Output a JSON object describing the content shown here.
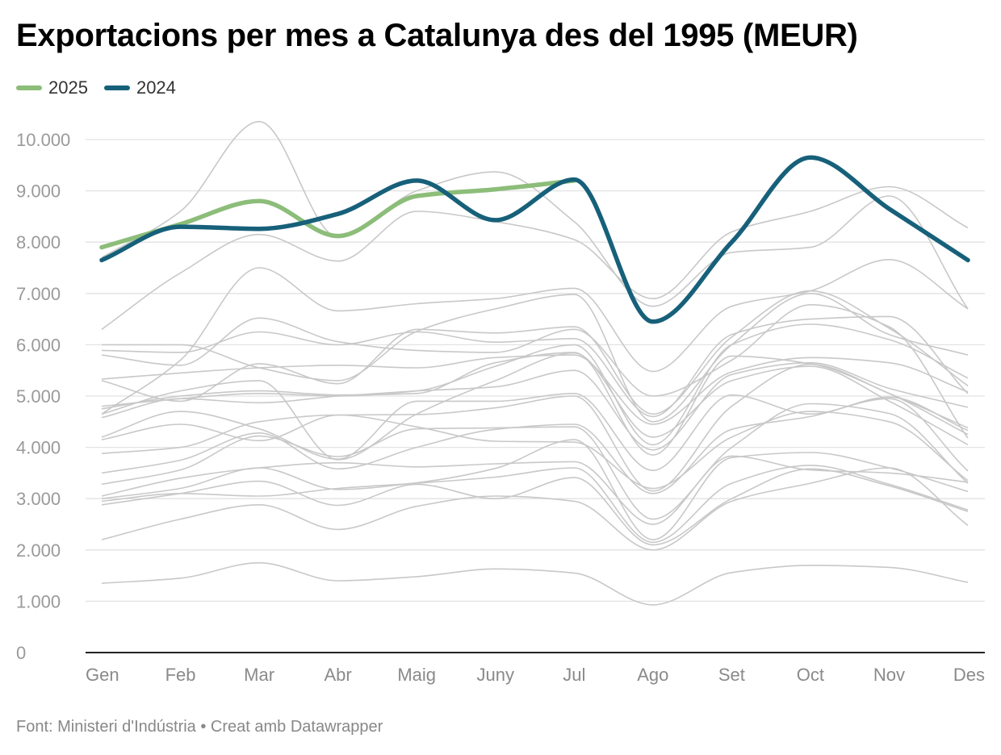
{
  "title": "Exportacions per mes a Catalunya des del 1995 (MEUR)",
  "footer": "Font: Ministeri d'Indústria • Creat amb Datawrapper",
  "colors": {
    "s2025": "#8cbd79",
    "s2024": "#17607a",
    "history": "#c8c8c8",
    "grid": "#e2e2e2",
    "axis": "#222222"
  },
  "chart_data": {
    "type": "line",
    "title": "Exportacions per mes a Catalunya des del 1995 (MEUR)",
    "categories": [
      "Gen",
      "Feb",
      "Mar",
      "Abr",
      "Maig",
      "Juny",
      "Jul",
      "Ago",
      "Set",
      "Oct",
      "Nov",
      "Des"
    ],
    "ylim": [
      0,
      10000
    ],
    "yticks": [
      0,
      1000,
      2000,
      3000,
      4000,
      5000,
      6000,
      7000,
      8000,
      9000,
      10000
    ],
    "ytick_labels": [
      "0",
      "1.000",
      "2.000",
      "3.000",
      "4.000",
      "5.000",
      "6.000",
      "7.000",
      "8.000",
      "9.000",
      "10.000"
    ],
    "grid": true,
    "legend_position": "top-left",
    "series": [
      {
        "name": "2025",
        "values": [
          7900,
          8350,
          8800,
          8120,
          8900,
          9030,
          9200,
          null,
          null,
          null,
          null,
          null
        ]
      },
      {
        "name": "2024",
        "values": [
          7650,
          8300,
          8260,
          8550,
          9200,
          8430,
          9220,
          6450,
          8000,
          9650,
          8650,
          7650
        ]
      }
    ],
    "history": [
      [
        1350,
        1450,
        1750,
        1400,
        1480,
        1630,
        1550,
        930,
        1560,
        1700,
        1660,
        1370
      ],
      [
        2200,
        2600,
        2880,
        2400,
        2850,
        3050,
        2950,
        2000,
        2950,
        3300,
        3600,
        2480
      ],
      [
        2880,
        3100,
        3340,
        2870,
        3280,
        3000,
        3410,
        2100,
        3000,
        3580,
        3250,
        2750
      ],
      [
        2950,
        3100,
        3050,
        3200,
        3300,
        3420,
        3600,
        2150,
        3300,
        3650,
        3280,
        2780
      ],
      [
        3000,
        3200,
        3600,
        3180,
        3310,
        3590,
        4150,
        2200,
        3800,
        3900,
        3600,
        3140
      ],
      [
        3050,
        3400,
        3600,
        3700,
        3620,
        3680,
        3720,
        2500,
        3830,
        3560,
        3500,
        3320
      ],
      [
        3280,
        3560,
        4220,
        3820,
        4360,
        4380,
        4400,
        2600,
        4000,
        4850,
        4660,
        3300
      ],
      [
        3500,
        3750,
        4280,
        3580,
        4000,
        4350,
        4450,
        3100,
        4350,
        4600,
        4950,
        3540
      ],
      [
        3880,
        4000,
        4500,
        4630,
        4400,
        4120,
        4100,
        3200,
        4200,
        4700,
        4500,
        3350
      ],
      [
        4150,
        4450,
        4130,
        4630,
        4640,
        4770,
        5000,
        3150,
        4800,
        5620,
        5050,
        4380
      ],
      [
        4200,
        4700,
        4360,
        3770,
        4900,
        4900,
        5050,
        3550,
        5020,
        4650,
        4980,
        4330
      ],
      [
        4580,
        4950,
        4870,
        5000,
        5100,
        5180,
        5500,
        3950,
        5420,
        5650,
        5150,
        4780
      ],
      [
        4650,
        5100,
        5300,
        3760,
        4650,
        5300,
        5840,
        4200,
        5300,
        5580,
        4900,
        4050
      ],
      [
        4750,
        5000,
        5100,
        5020,
        5050,
        5650,
        5850,
        3850,
        5780,
        5630,
        5050,
        4250
      ],
      [
        4800,
        4950,
        5050,
        5000,
        5100,
        5580,
        6000,
        4050,
        6000,
        6400,
        6100,
        5350
      ],
      [
        5330,
        5450,
        5550,
        5600,
        5550,
        5750,
        5800,
        4450,
        5470,
        5750,
        5650,
        5080
      ],
      [
        5300,
        4900,
        5630,
        5240,
        6300,
        6230,
        6350,
        4650,
        6150,
        7050,
        6320,
        5200
      ],
      [
        5800,
        5600,
        6520,
        6060,
        5890,
        5850,
        6300,
        5000,
        5700,
        6780,
        6350,
        4180
      ],
      [
        5890,
        5850,
        6250,
        6000,
        6250,
        6050,
        6120,
        4600,
        6200,
        6500,
        6550,
        5050
      ],
      [
        6000,
        6000,
        5550,
        5300,
        6260,
        6700,
        6980,
        4500,
        6000,
        7000,
        6200,
        5800
      ],
      [
        4650,
        5700,
        7500,
        6660,
        6800,
        6900,
        7100,
        5480,
        6750,
        7050,
        7660,
        6700
      ],
      [
        6300,
        7400,
        8150,
        7630,
        8600,
        8400,
        8050,
        6900,
        8200,
        8600,
        9080,
        8280
      ],
      [
        7700,
        8600,
        10350,
        8100,
        9000,
        9370,
        8400,
        6750,
        7800,
        7900,
        8900,
        6700
      ]
    ]
  }
}
